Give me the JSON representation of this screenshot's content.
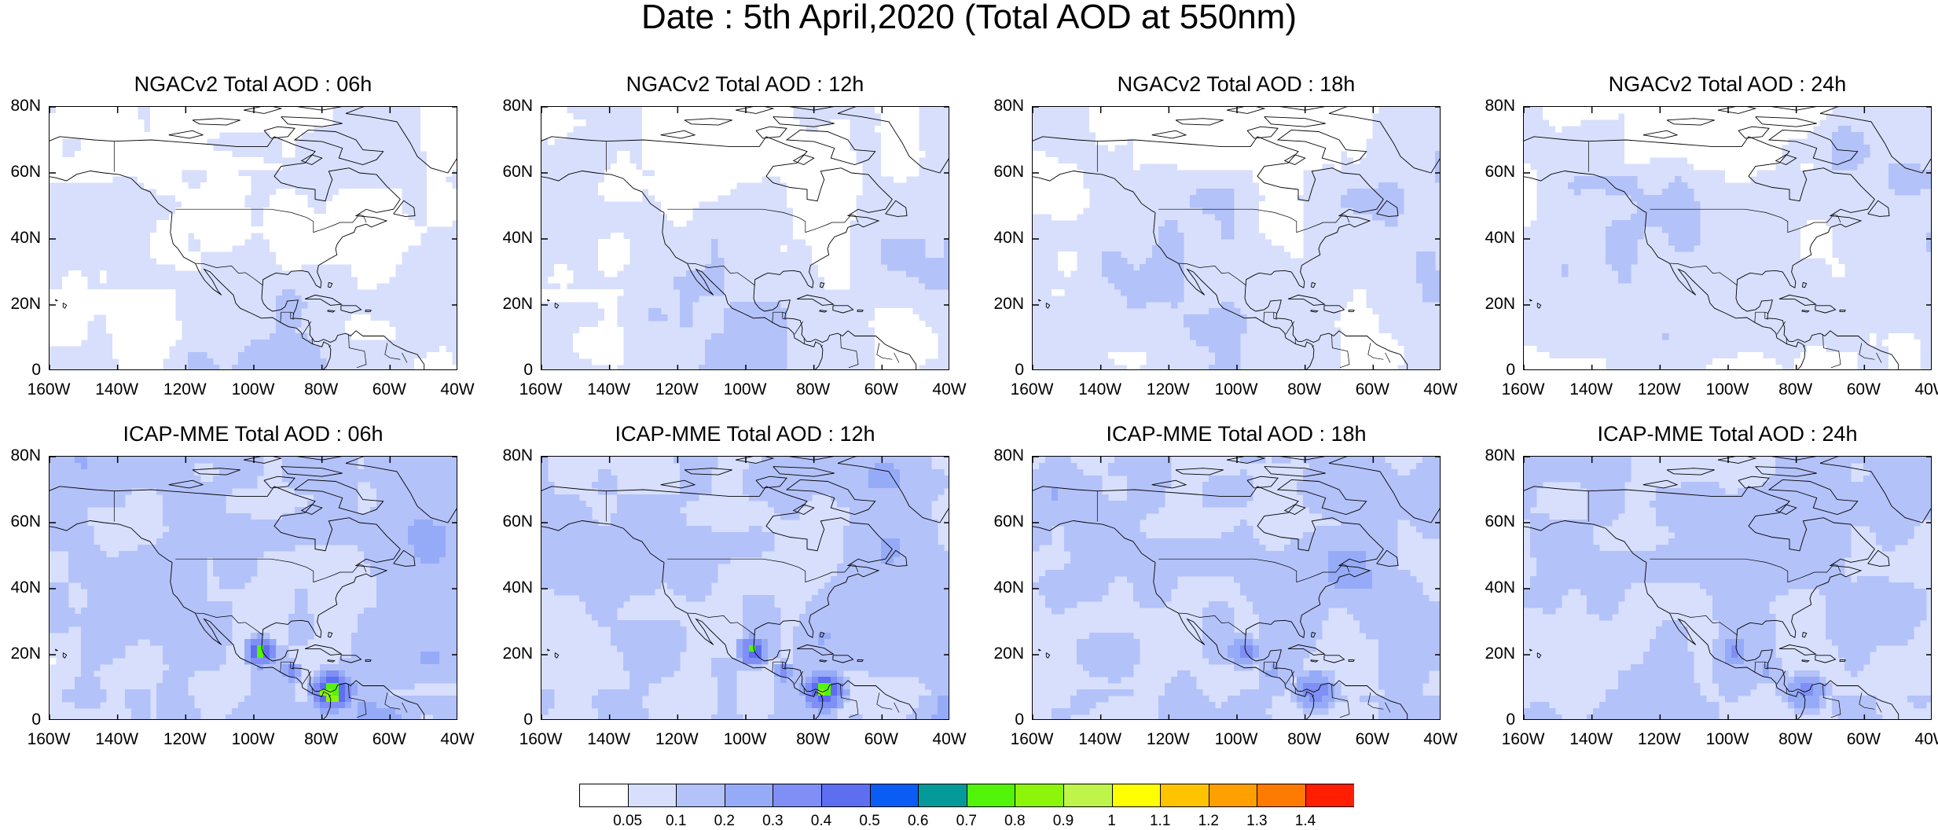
{
  "title": "Date : 5th April,2020 (Total AOD at 550nm)",
  "axes": {
    "y_ticks": [
      "80N",
      "60N",
      "40N",
      "20N",
      "0"
    ],
    "x_ticks": [
      "160W",
      "140W",
      "120W",
      "100W",
      "80W",
      "60W",
      "40W"
    ],
    "lat_range": [
      0,
      80
    ],
    "lon_range": [
      -160,
      -40
    ]
  },
  "panels": [
    {
      "title": "NGACv2 Total AOD : 06h",
      "model": "NGACv2",
      "hour": "06h"
    },
    {
      "title": "NGACv2 Total AOD : 12h",
      "model": "NGACv2",
      "hour": "12h"
    },
    {
      "title": "NGACv2 Total AOD : 18h",
      "model": "NGACv2",
      "hour": "18h"
    },
    {
      "title": "NGACv2 Total AOD : 24h",
      "model": "NGACv2",
      "hour": "24h"
    },
    {
      "title": "ICAP-MME Total AOD : 06h",
      "model": "ICAP-MME",
      "hour": "06h"
    },
    {
      "title": "ICAP-MME Total AOD : 12h",
      "model": "ICAP-MME",
      "hour": "12h"
    },
    {
      "title": "ICAP-MME Total AOD : 18h",
      "model": "ICAP-MME",
      "hour": "18h"
    },
    {
      "title": "ICAP-MME Total AOD : 24h",
      "model": "ICAP-MME",
      "hour": "24h"
    }
  ],
  "colorbar": {
    "colors": [
      "#ffffff",
      "#d7dffc",
      "#b4c2fa",
      "#96abf8",
      "#7f8ff6",
      "#5d6ef0",
      "#0a5cf5",
      "#049a9a",
      "#54f40a",
      "#8cf50a",
      "#bff54b",
      "#ffff00",
      "#ffc300",
      "#ff9f00",
      "#ff7a00",
      "#ff1e00"
    ],
    "labels": [
      "0.05",
      "0.1",
      "0.2",
      "0.3",
      "0.4",
      "0.5",
      "0.6",
      "0.7",
      "0.8",
      "0.9",
      "1",
      "1.1",
      "1.2",
      "1.3",
      "1.4"
    ]
  }
}
